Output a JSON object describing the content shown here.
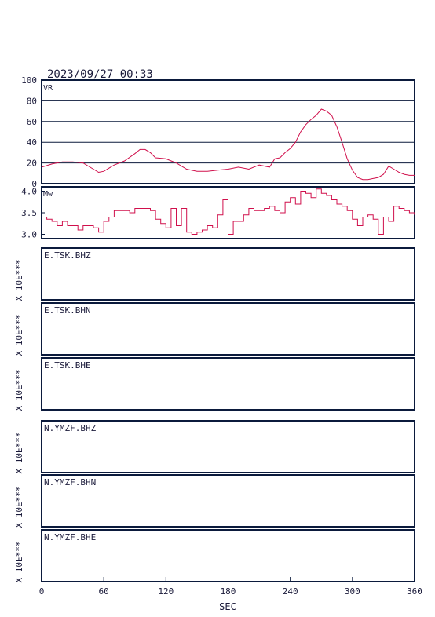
{
  "timestamp": "2023/09/27 00:33",
  "x_axis": {
    "label": "SEC",
    "ticks": [
      "0",
      "60",
      "120",
      "180",
      "240",
      "300",
      "360"
    ],
    "range": [
      0,
      360
    ]
  },
  "vr_panel": {
    "label": "VR",
    "ticks": [
      "100",
      "80",
      "60",
      "40",
      "20",
      "0"
    ]
  },
  "mw_panel": {
    "label": "Mw",
    "ticks": [
      "4.0",
      "3.5",
      "3.0"
    ]
  },
  "stations": [
    {
      "name": "E.TSK.BHZ",
      "scale": "X 10E***"
    },
    {
      "name": "E.TSK.BHN",
      "scale": "X 10E***"
    },
    {
      "name": "E.TSK.BHE",
      "scale": "X 10E***"
    },
    {
      "name": "N.YMZF.BHZ",
      "scale": "X 10E***"
    },
    {
      "name": "N.YMZF.BHN",
      "scale": "X 10E***"
    },
    {
      "name": "N.YMZF.BHE",
      "scale": "X 10E***"
    }
  ],
  "colors": {
    "trace": "#d0104c",
    "frame": "#0b1a3c",
    "text": "#1a1a3a"
  },
  "chart_data": [
    {
      "type": "line",
      "title": "",
      "xlabel": "SEC",
      "ylabel": "VR",
      "xlim": [
        0,
        360
      ],
      "ylim": [
        0,
        100
      ],
      "grid": true,
      "series": [
        {
          "x": [
            0,
            10,
            20,
            30,
            40,
            50,
            55,
            60,
            65,
            70,
            80,
            90,
            95,
            100,
            105,
            110,
            120,
            130,
            140,
            150,
            160,
            170,
            180,
            190,
            200,
            210,
            220,
            225,
            230,
            235,
            240,
            245,
            250,
            255,
            260,
            265,
            270,
            275,
            280,
            285,
            290,
            295,
            300,
            305,
            310,
            315,
            320,
            325,
            330,
            335,
            340,
            345,
            350,
            355,
            360
          ],
          "values": [
            16,
            19,
            21,
            21,
            20,
            14,
            11,
            12,
            15,
            18,
            22,
            29,
            33,
            33,
            30,
            25,
            24,
            20,
            14,
            12,
            12,
            13,
            14,
            16,
            14,
            18,
            16,
            24,
            25,
            30,
            34,
            40,
            50,
            57,
            62,
            66,
            72,
            70,
            66,
            55,
            40,
            24,
            13,
            6,
            4,
            4,
            5,
            6,
            9,
            17,
            14,
            11,
            9,
            8,
            8
          ]
        }
      ]
    },
    {
      "type": "line",
      "title": "",
      "xlabel": "SEC",
      "ylabel": "Mw",
      "xlim": [
        0,
        360
      ],
      "ylim": [
        2.9,
        4.1
      ],
      "grid": false,
      "series": [
        {
          "x": [
            0,
            5,
            10,
            15,
            20,
            25,
            30,
            35,
            40,
            45,
            50,
            55,
            60,
            65,
            70,
            75,
            80,
            85,
            90,
            95,
            100,
            105,
            110,
            115,
            120,
            125,
            130,
            135,
            140,
            145,
            150,
            155,
            160,
            165,
            170,
            175,
            180,
            185,
            190,
            195,
            200,
            205,
            210,
            215,
            220,
            225,
            230,
            235,
            240,
            245,
            250,
            255,
            260,
            265,
            270,
            275,
            280,
            285,
            290,
            295,
            300,
            305,
            310,
            315,
            320,
            325,
            330,
            335,
            340,
            345,
            350,
            355,
            360
          ],
          "values": [
            3.4,
            3.35,
            3.3,
            3.2,
            3.3,
            3.2,
            3.2,
            3.1,
            3.2,
            3.2,
            3.15,
            3.05,
            3.3,
            3.4,
            3.55,
            3.55,
            3.55,
            3.5,
            3.6,
            3.6,
            3.6,
            3.55,
            3.35,
            3.25,
            3.15,
            3.6,
            3.2,
            3.6,
            3.05,
            3.0,
            3.05,
            3.1,
            3.2,
            3.15,
            3.45,
            3.8,
            3.0,
            3.3,
            3.3,
            3.45,
            3.6,
            3.55,
            3.55,
            3.6,
            3.65,
            3.55,
            3.5,
            3.75,
            3.85,
            3.7,
            4.0,
            3.95,
            3.85,
            4.05,
            3.95,
            3.9,
            3.8,
            3.7,
            3.65,
            3.55,
            3.35,
            3.2,
            3.4,
            3.45,
            3.35,
            3.0,
            3.4,
            3.3,
            3.65,
            3.6,
            3.55,
            3.5,
            3.45
          ]
        }
      ]
    }
  ]
}
